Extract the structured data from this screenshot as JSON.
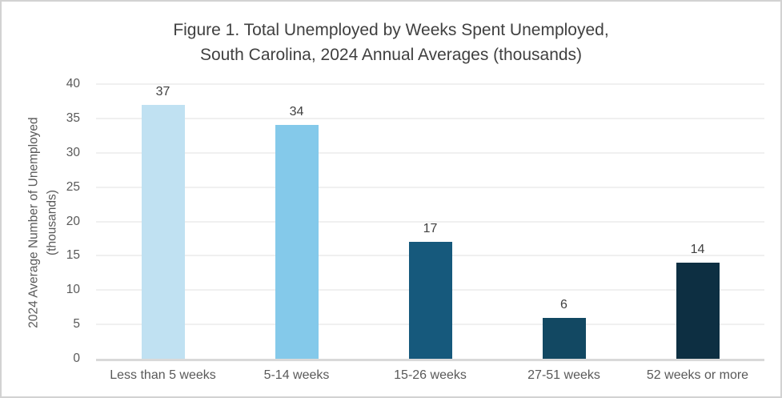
{
  "chart_data": {
    "type": "bar",
    "title": "Figure 1. Total Unemployed by Weeks Spent Unemployed, South Carolina, 2024 Annual Averages (thousands)",
    "title_lines": [
      "Figure 1. Total Unemployed by Weeks Spent Unemployed,",
      "South Carolina, 2024 Annual Averages (thousands)"
    ],
    "ylabel": "2024 Average Number of Unemployed (thousands)",
    "ylabel_lines": [
      "2024 Average Number of Unemployed",
      "(thousands)"
    ],
    "xlabel": "",
    "categories": [
      "Less than 5 weeks",
      "5-14 weeks",
      "15-26 weeks",
      "27-51 weeks",
      "52 weeks or more"
    ],
    "values": [
      37,
      34,
      17,
      6,
      14
    ],
    "data_labels": [
      "37",
      "34",
      "17",
      "6",
      "14"
    ],
    "yticks": [
      0,
      5,
      10,
      15,
      20,
      25,
      30,
      35,
      40
    ],
    "ylim": [
      0,
      40
    ],
    "grid": true,
    "legend": false,
    "bar_colors": [
      "#c0e1f2",
      "#84c9ea",
      "#16597c",
      "#124862",
      "#0d2f42"
    ],
    "colors": {
      "title_text": "#404040",
      "axis_text": "#595959",
      "data_label_text": "#404040",
      "gridline": "#f0f0f0",
      "axis_line": "#d9d9d9",
      "background": "#ffffff",
      "frame_border": "#d2d2d2"
    }
  }
}
